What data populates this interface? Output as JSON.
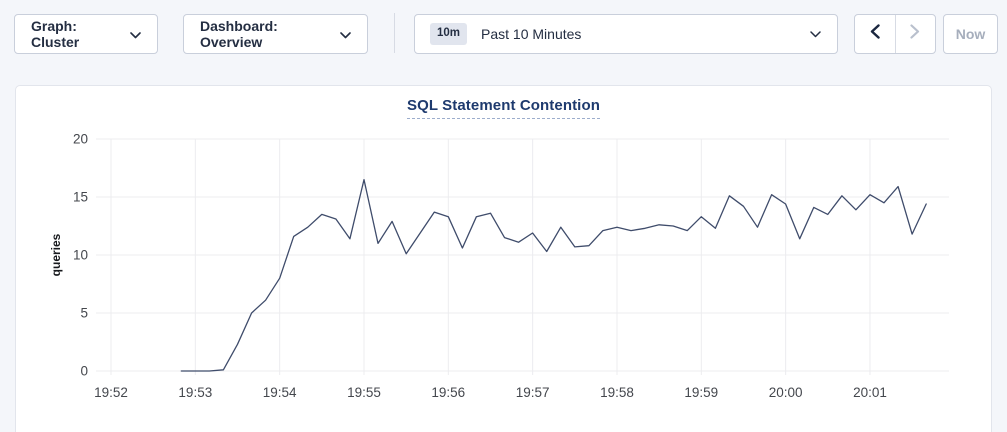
{
  "toolbar": {
    "graph_dropdown_label": "Graph: Cluster",
    "dashboard_dropdown_label": "Dashboard: Overview",
    "time_badge": "10m",
    "time_label": "Past 10 Minutes",
    "now_label": "Now",
    "icons": {
      "dropdown": "chevron-down-icon",
      "prev": "chevron-left-icon",
      "next": "chevron-right-icon"
    }
  },
  "colors": {
    "page_bg": "#f4f6fa",
    "card_bg": "#ffffff",
    "accent_text": "#242e42",
    "disabled_text": "#a6aebc",
    "title_text": "#1e3a6e",
    "line": "#3f4c6b",
    "grid": "#ececef",
    "tick_text": "#44474d"
  },
  "chart_data": {
    "type": "line",
    "title": "SQL Statement Contention",
    "xlabel": "",
    "ylabel": "queries",
    "ylim": [
      0,
      20
    ],
    "yticks": [
      0,
      5,
      10,
      15,
      20
    ],
    "xticks": [
      "19:52",
      "19:53",
      "19:54",
      "19:55",
      "19:56",
      "19:57",
      "19:58",
      "19:59",
      "20:00",
      "20:01"
    ],
    "grid": true,
    "legend": "none",
    "x_start_offset_seconds": 50,
    "x_step_seconds": 10,
    "series": [
      {
        "name": "queries",
        "values": [
          0,
          0,
          0,
          0.1,
          2.3,
          5.0,
          6.1,
          8.0,
          11.6,
          12.4,
          13.5,
          13.1,
          11.4,
          16.5,
          11.0,
          12.9,
          10.1,
          11.9,
          13.7,
          13.3,
          10.6,
          13.3,
          13.6,
          11.5,
          11.1,
          11.9,
          10.3,
          12.4,
          10.7,
          10.8,
          12.1,
          12.4,
          12.1,
          12.3,
          12.6,
          12.5,
          12.1,
          13.3,
          12.3,
          15.1,
          14.2,
          12.4,
          15.2,
          14.4,
          11.4,
          14.1,
          13.5,
          15.1,
          13.9,
          15.2,
          14.5,
          15.9,
          11.8,
          14.4
        ]
      }
    ]
  }
}
